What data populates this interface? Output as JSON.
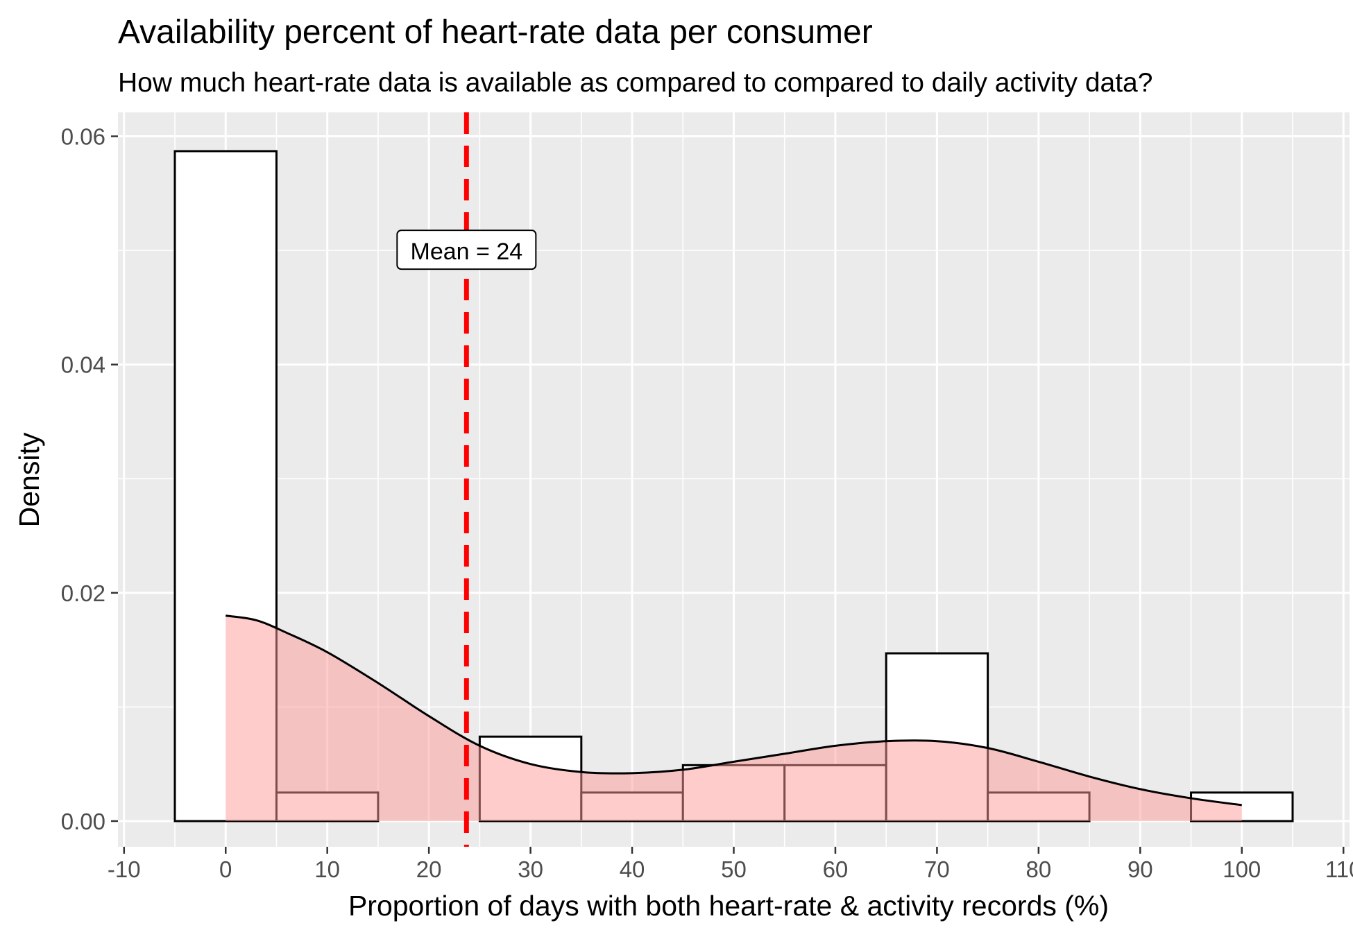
{
  "chart_data": {
    "type": "histogram",
    "title": "Availability percent of heart-rate data per consumer",
    "subtitle": "How much heart-rate data is available as compared to compared to daily activity data?",
    "xlabel": "Proportion of days with both heart-rate & activity records (%)",
    "ylabel": "Density",
    "xlim": [
      -10,
      110
    ],
    "ylim": [
      0,
      0.06
    ],
    "x_ticks": [
      -10,
      0,
      10,
      20,
      30,
      40,
      50,
      60,
      70,
      80,
      90,
      100,
      110
    ],
    "x_tick_labels": [
      "-10",
      "0",
      "10",
      "20",
      "30",
      "40",
      "50",
      "60",
      "70",
      "80",
      "90",
      "100",
      "110"
    ],
    "y_ticks": [
      0,
      0.02,
      0.04,
      0.06
    ],
    "y_tick_labels": [
      "0.00",
      "0.02",
      "0.04",
      "0.06"
    ],
    "grid": true,
    "bins": [
      {
        "start": -5,
        "end": 5,
        "density": 0.0587
      },
      {
        "start": 5,
        "end": 15,
        "density": 0.0025
      },
      {
        "start": 15,
        "end": 25,
        "density": 0
      },
      {
        "start": 25,
        "end": 35,
        "density": 0.0074
      },
      {
        "start": 35,
        "end": 45,
        "density": 0.0025
      },
      {
        "start": 45,
        "end": 55,
        "density": 0.0049
      },
      {
        "start": 55,
        "end": 65,
        "density": 0.0049
      },
      {
        "start": 65,
        "end": 75,
        "density": 0.0147
      },
      {
        "start": 75,
        "end": 85,
        "density": 0.0025
      },
      {
        "start": 85,
        "end": 95,
        "density": 0
      },
      {
        "start": 95,
        "end": 105,
        "density": 0.0025
      }
    ],
    "density_curve": {
      "x": [
        0,
        3,
        6,
        10,
        15,
        20,
        25,
        30,
        35,
        40,
        45,
        50,
        55,
        60,
        65,
        70,
        75,
        80,
        85,
        90,
        95,
        100
      ],
      "y": [
        0.018,
        0.0176,
        0.0165,
        0.0148,
        0.0121,
        0.0092,
        0.0066,
        0.005,
        0.0043,
        0.0042,
        0.0045,
        0.0052,
        0.0059,
        0.0066,
        0.007,
        0.007,
        0.0064,
        0.0052,
        0.0039,
        0.0028,
        0.002,
        0.0014
      ]
    },
    "mean_line": {
      "value": 23.7,
      "label": "Mean = 24",
      "label_y": 0.05
    },
    "colors": {
      "panel_bg": "#EBEBEB",
      "grid": "#FFFFFF",
      "bar_fill": "#FFFFFF",
      "bar_stroke": "#000000",
      "density_fill": "#FF9999",
      "mean_line": "#FF0000",
      "axis_text": "#4D4D4D"
    }
  }
}
